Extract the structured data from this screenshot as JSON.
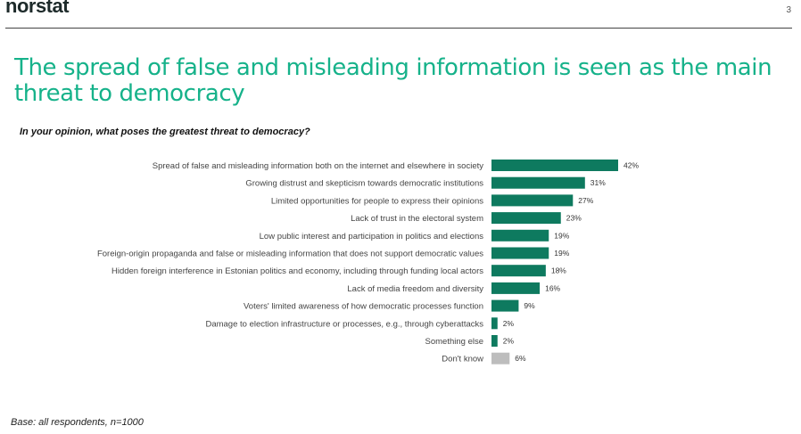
{
  "header": {
    "logo": "norstat",
    "page_number": "3"
  },
  "title": "The spread of false and misleading information is seen as the main threat to democracy",
  "question": "In your opinion, what poses the greatest threat to democracy?",
  "footer": {
    "base": "Base: all respondents, n=1000"
  },
  "colors": {
    "accent": "#16b28a",
    "bar": "#0e7a5f",
    "bar_dont_know": "#bdbdbd"
  },
  "chart_data": {
    "type": "bar",
    "orientation": "horizontal",
    "categories": [
      "Spread of false and misleading information both on the internet and elsewhere in society",
      "Growing distrust and skepticism towards democratic institutions",
      "Limited opportunities for people to express their opinions",
      "Lack of trust in the electoral system",
      "Low public interest and participation in politics and elections",
      "Foreign-origin propaganda and false or misleading information that does not support democratic values",
      "Hidden foreign interference in Estonian politics and economy, including through funding local actors",
      "Lack of media freedom and diversity",
      "Voters' limited awareness of how democratic processes function",
      "Damage to election infrastructure or processes, e.g., through cyberattacks",
      "Something else",
      "Don't know"
    ],
    "values": [
      42,
      31,
      27,
      23,
      19,
      19,
      18,
      16,
      9,
      2,
      2,
      6
    ],
    "value_labels": [
      "42%",
      "31%",
      "27%",
      "23%",
      "19%",
      "19%",
      "18%",
      "16%",
      "9%",
      "2%",
      "2%",
      "6%"
    ],
    "unit": "%",
    "xlim": [
      0,
      42
    ],
    "grid": false,
    "legend": "none"
  }
}
